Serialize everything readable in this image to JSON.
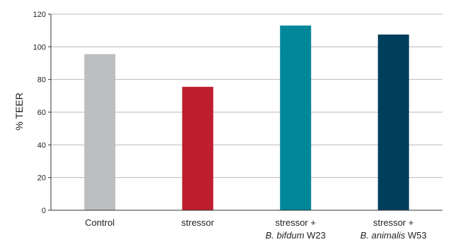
{
  "chart_data": {
    "type": "bar",
    "categories": [
      {
        "line1": "Control",
        "line2_italic": "",
        "line2_rest": ""
      },
      {
        "line1": "stressor",
        "line2_italic": "",
        "line2_rest": ""
      },
      {
        "line1": "stressor +",
        "line2_italic": "B. bifdum",
        "line2_rest": " W23"
      },
      {
        "line1": "stressor +",
        "line2_italic": "B. animalis",
        "line2_rest": " W53"
      }
    ],
    "values": [
      95.5,
      75.5,
      113,
      107.5
    ],
    "colors": [
      "#bdbec0",
      "#be1e2d",
      "#00879a",
      "#003f5c"
    ],
    "ylabel": "% TEER",
    "ylim": [
      0,
      120
    ],
    "yticks": [
      0,
      20,
      40,
      60,
      80,
      100,
      120
    ],
    "grid": true
  }
}
